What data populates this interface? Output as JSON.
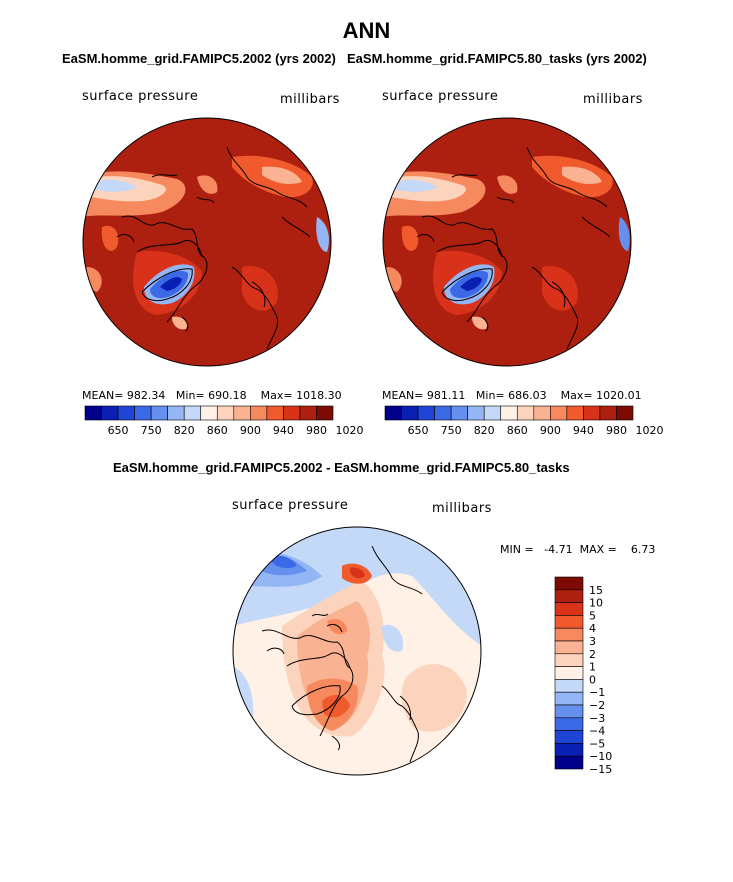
{
  "figure": {
    "title": "ANN"
  },
  "panels": [
    {
      "title": "EaSM.homme_grid.FAMIPC5.2002 (yrs 2002)",
      "variable_label": "surface pressure",
      "units_label": "millibars",
      "stats": {
        "mean": "MEAN= 982.34",
        "min": "Min= 690.18",
        "max": "Max= 1018.30"
      }
    },
    {
      "title": "EaSM.homme_grid.FAMIPC5.80_tasks (yrs 2002)",
      "variable_label": "surface pressure",
      "units_label": "millibars",
      "stats": {
        "mean": "MEAN= 981.11",
        "min": "Min= 686.03",
        "max": "Max= 1020.01"
      }
    },
    {
      "title": "EaSM.homme_grid.FAMIPC5.2002 - EaSM.homme_grid.FAMIPC5.80_tasks",
      "variable_label": "surface pressure",
      "units_label": "millibars",
      "stats": {
        "minmax": "MIN =   -4.71  MAX =    6.73"
      }
    }
  ],
  "colorbars": {
    "absolute": {
      "orientation": "horizontal",
      "colors": [
        "#00008a",
        "#0a1fb4",
        "#1f45d6",
        "#3c6ae6",
        "#6590ee",
        "#94b6f4",
        "#c4d9f8",
        "#fff1e6",
        "#fcd4bd",
        "#f9b292",
        "#f6895e",
        "#f05a2c",
        "#d8331a",
        "#ad1f0e",
        "#7e0b03"
      ],
      "labels": [
        "650",
        "750",
        "820",
        "860",
        "900",
        "940",
        "980",
        "1020"
      ]
    },
    "difference": {
      "orientation": "vertical",
      "colors": [
        "#00008a",
        "#0a1fb4",
        "#1f45d6",
        "#3c6ae6",
        "#6590ee",
        "#94b6f4",
        "#c4d9f8",
        "#fff1e6",
        "#fcd4bd",
        "#f9b292",
        "#f6895e",
        "#f05a2c",
        "#d8331a",
        "#ad1f0e",
        "#7e0b03"
      ],
      "labels": [
        "15",
        "10",
        "5",
        "4",
        "3",
        "2",
        "1",
        "0",
        "−1",
        "−2",
        "−3",
        "−4",
        "−5",
        "−10",
        "−15"
      ]
    }
  },
  "chart_data": [
    {
      "type": "heatmap",
      "projection": "north-polar-stereographic",
      "title": "EaSM.homme_grid.FAMIPC5.2002 (yrs 2002)",
      "variable": "surface pressure",
      "units": "millibars",
      "mean": 982.34,
      "min": 690.18,
      "max": 1018.3,
      "levels": [
        650,
        750,
        820,
        860,
        900,
        940,
        980,
        1020
      ]
    },
    {
      "type": "heatmap",
      "projection": "north-polar-stereographic",
      "title": "EaSM.homme_grid.FAMIPC5.80_tasks (yrs 2002)",
      "variable": "surface pressure",
      "units": "millibars",
      "mean": 981.11,
      "min": 686.03,
      "max": 1020.01,
      "levels": [
        650,
        750,
        820,
        860,
        900,
        940,
        980,
        1020
      ]
    },
    {
      "type": "heatmap",
      "projection": "north-polar-stereographic",
      "title": "EaSM.homme_grid.FAMIPC5.2002 - EaSM.homme_grid.FAMIPC5.80_tasks",
      "variable": "surface pressure",
      "units": "millibars",
      "min": -4.71,
      "max": 6.73,
      "levels": [
        -15,
        -10,
        -5,
        -4,
        -3,
        -2,
        -1,
        0,
        1,
        2,
        3,
        4,
        5,
        10,
        15
      ]
    }
  ]
}
